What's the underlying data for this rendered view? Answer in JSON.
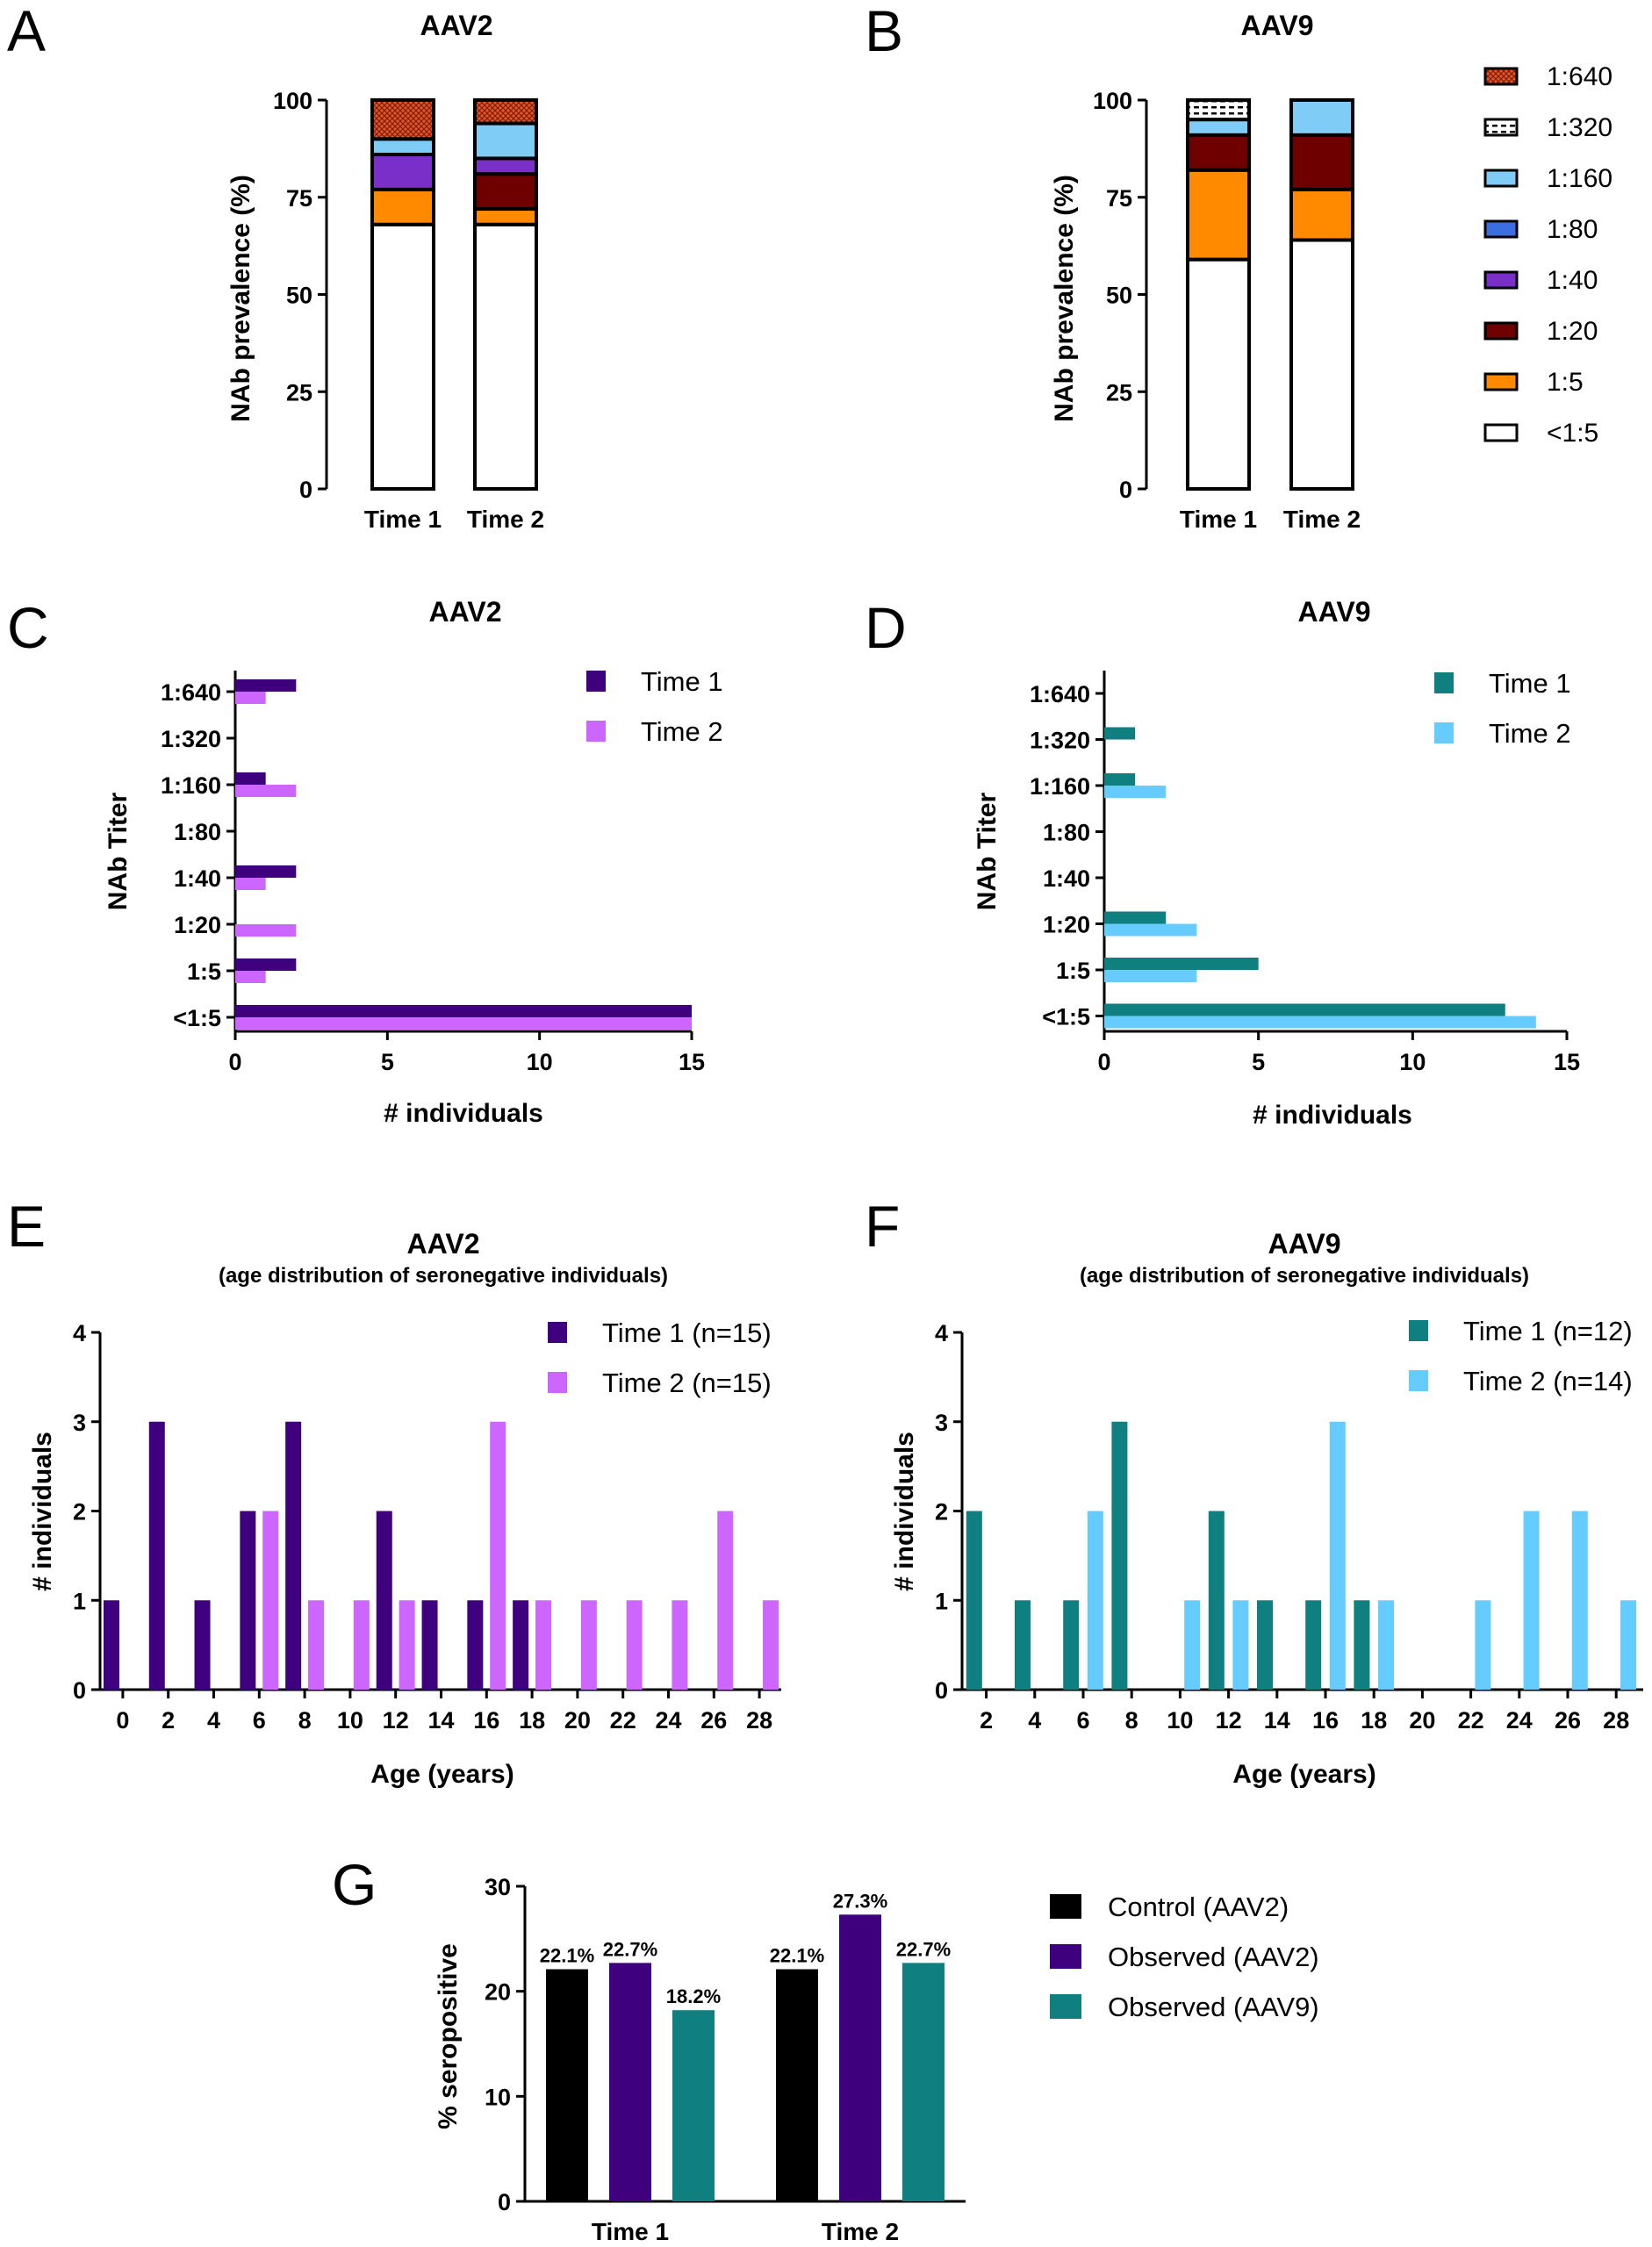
{
  "colors": {
    "t640": "#e8542b",
    "t320": "#ffffff",
    "t160": "#7fcdf7",
    "t80": "#3b6fe0",
    "t40": "#7a2fc8",
    "t20": "#6e0000",
    "t5": "#ff8a00",
    "neg": "#ffffff",
    "aav2_time1": "#3f007d",
    "aav2_time2": "#cc66ff",
    "aav9_time1": "#0f7f7f",
    "aav9_time2": "#66ccff",
    "control": "#000000",
    "obs_aav2": "#3f007d",
    "obs_aav9": "#0f7f7f"
  },
  "panels": {
    "A": {
      "letter": "A",
      "title": "AAV2",
      "ylabel": "NAb prevalence (%)"
    },
    "B": {
      "letter": "B",
      "title": "AAV9",
      "ylabel": "NAb prevalence (%)"
    },
    "C": {
      "letter": "C",
      "title": "AAV2",
      "xlabel": "# individuals",
      "ylabel": "NAb Titer"
    },
    "D": {
      "letter": "D",
      "title": "AAV9",
      "xlabel": "# individuals",
      "ylabel": "NAb Titer"
    },
    "E": {
      "letter": "E",
      "title": "AAV2",
      "subtitle": "(age distribution of seronegative individuals)",
      "xlabel": "Age (years)",
      "ylabel": "# individuals"
    },
    "F": {
      "letter": "F",
      "title": "AAV9",
      "subtitle": "(age distribution of seronegative individuals)",
      "xlabel": "Age (years)",
      "ylabel": "# individuals"
    },
    "G": {
      "letter": "G",
      "ylabel": "% seropositive"
    }
  },
  "chart_data": [
    {
      "id": "A",
      "type": "bar",
      "stacked": true,
      "categories": [
        "Time 1",
        "Time 2"
      ],
      "series": [
        {
          "name": "<1:5",
          "key": "neg",
          "values": [
            68,
            68
          ]
        },
        {
          "name": "1:5",
          "key": "t5",
          "values": [
            9,
            4
          ]
        },
        {
          "name": "1:20",
          "key": "t20",
          "values": [
            0,
            9
          ]
        },
        {
          "name": "1:40",
          "key": "t40",
          "values": [
            9,
            4
          ]
        },
        {
          "name": "1:80",
          "key": "t80",
          "values": [
            0,
            0
          ]
        },
        {
          "name": "1:160",
          "key": "t160",
          "values": [
            4,
            9
          ]
        },
        {
          "name": "1:320",
          "key": "t320",
          "values": [
            0,
            0
          ]
        },
        {
          "name": "1:640",
          "key": "t640",
          "values": [
            10,
            6
          ]
        }
      ],
      "yticks": [
        "0",
        "25",
        "50",
        "75",
        "100"
      ],
      "ylim": [
        0,
        100
      ]
    },
    {
      "id": "B",
      "type": "bar",
      "stacked": true,
      "categories": [
        "Time 1",
        "Time 2"
      ],
      "series": [
        {
          "name": "<1:5",
          "key": "neg",
          "values": [
            59,
            64
          ]
        },
        {
          "name": "1:5",
          "key": "t5",
          "values": [
            23,
            13
          ]
        },
        {
          "name": "1:20",
          "key": "t20",
          "values": [
            9,
            14
          ]
        },
        {
          "name": "1:40",
          "key": "t40",
          "values": [
            0,
            0
          ]
        },
        {
          "name": "1:80",
          "key": "t80",
          "values": [
            0,
            0
          ]
        },
        {
          "name": "1:160",
          "key": "t160",
          "values": [
            4,
            9
          ]
        },
        {
          "name": "1:320",
          "key": "t320",
          "values": [
            5,
            0
          ]
        },
        {
          "name": "1:640",
          "key": "t640",
          "values": [
            0,
            0
          ]
        }
      ],
      "yticks": [
        "0",
        "25",
        "50",
        "75",
        "100"
      ],
      "ylim": [
        0,
        100
      ],
      "legend_order": [
        "t640",
        "t320",
        "t160",
        "t80",
        "t40",
        "t20",
        "t5",
        "neg"
      ]
    },
    {
      "id": "C",
      "type": "bar",
      "orientation": "horizontal",
      "categories": [
        "1:640",
        "1:320",
        "1:160",
        "1:80",
        "1:40",
        "1:20",
        "1:5",
        "<1:5"
      ],
      "series": [
        {
          "name": "Time 1",
          "key": "aav2_time1",
          "values": [
            2,
            0,
            1,
            0,
            2,
            0,
            2,
            15
          ]
        },
        {
          "name": "Time 2",
          "key": "aav2_time2",
          "values": [
            1,
            0,
            2,
            0,
            1,
            2,
            1,
            15
          ]
        }
      ],
      "xticks": [
        "0",
        "5",
        "10",
        "15"
      ],
      "xlim": [
        0,
        15
      ]
    },
    {
      "id": "D",
      "type": "bar",
      "orientation": "horizontal",
      "categories": [
        "1:640",
        "1:320",
        "1:160",
        "1:80",
        "1:40",
        "1:20",
        "1:5",
        "<1:5"
      ],
      "series": [
        {
          "name": "Time 1",
          "key": "aav9_time1",
          "values": [
            0,
            1,
            1,
            0,
            0,
            2,
            5,
            13
          ]
        },
        {
          "name": "Time 2",
          "key": "aav9_time2",
          "values": [
            0,
            0,
            2,
            0,
            0,
            3,
            3,
            14
          ]
        }
      ],
      "xticks": [
        "0",
        "5",
        "10",
        "15"
      ],
      "xlim": [
        0,
        15
      ]
    },
    {
      "id": "E",
      "type": "bar",
      "xlim": [
        -1,
        29
      ],
      "ylim": [
        0,
        4
      ],
      "xticks": [
        "0",
        "2",
        "4",
        "6",
        "8",
        "10",
        "12",
        "14",
        "16",
        "18",
        "20",
        "22",
        "24",
        "26",
        "28"
      ],
      "yticks": [
        "0",
        "1",
        "2",
        "3",
        "4"
      ],
      "series": [
        {
          "name": "Time 1 (n=15)",
          "key": "aav2_time1",
          "points": [
            [
              -0.5,
              1
            ],
            [
              1.5,
              3
            ],
            [
              3.5,
              1
            ],
            [
              5.5,
              2
            ],
            [
              7.5,
              3
            ],
            [
              11.5,
              2
            ],
            [
              13.5,
              1
            ],
            [
              15.5,
              1
            ],
            [
              17.5,
              1
            ]
          ]
        },
        {
          "name": "Time 2 (n=15)",
          "key": "aav2_time2",
          "points": [
            [
              6.5,
              2
            ],
            [
              8.5,
              1
            ],
            [
              10.5,
              1
            ],
            [
              12.5,
              1
            ],
            [
              16.5,
              3
            ],
            [
              18.5,
              1
            ],
            [
              20.5,
              1
            ],
            [
              22.5,
              1
            ],
            [
              24.5,
              1
            ],
            [
              26.5,
              2
            ],
            [
              28.5,
              1
            ]
          ]
        }
      ]
    },
    {
      "id": "F",
      "type": "bar",
      "xlim": [
        1,
        29
      ],
      "ylim": [
        0,
        4
      ],
      "xticks": [
        "2",
        "4",
        "6",
        "8",
        "10",
        "12",
        "14",
        "16",
        "18",
        "20",
        "22",
        "24",
        "26",
        "28"
      ],
      "yticks": [
        "0",
        "1",
        "2",
        "3",
        "4"
      ],
      "series": [
        {
          "name": "Time 1 (n=12)",
          "key": "aav9_time1",
          "points": [
            [
              1.5,
              2
            ],
            [
              3.5,
              1
            ],
            [
              5.5,
              1
            ],
            [
              7.5,
              3
            ],
            [
              11.5,
              2
            ],
            [
              13.5,
              1
            ],
            [
              15.5,
              1
            ],
            [
              17.5,
              1
            ]
          ]
        },
        {
          "name": "Time 2 (n=14)",
          "key": "aav9_time2",
          "points": [
            [
              6.5,
              2
            ],
            [
              10.5,
              1
            ],
            [
              12.5,
              1
            ],
            [
              16.5,
              3
            ],
            [
              18.5,
              1
            ],
            [
              22.5,
              1
            ],
            [
              24.5,
              2
            ],
            [
              26.5,
              2
            ],
            [
              28.5,
              1
            ]
          ]
        }
      ]
    },
    {
      "id": "G",
      "type": "bar",
      "categories": [
        "Time 1",
        "Time 2"
      ],
      "series": [
        {
          "name": "Control (AAV2)",
          "key": "control",
          "values": [
            22.1,
            22.1
          ],
          "labels": [
            "22.1%",
            "22.1%"
          ]
        },
        {
          "name": "Observed (AAV2)",
          "key": "obs_aav2",
          "values": [
            22.7,
            27.3
          ],
          "labels": [
            "22.7%",
            "27.3%"
          ]
        },
        {
          "name": "Observed (AAV9)",
          "key": "obs_aav9",
          "values": [
            18.2,
            22.7
          ],
          "labels": [
            "18.2%",
            "22.7%"
          ]
        }
      ],
      "yticks": [
        "0",
        "10",
        "20",
        "30"
      ],
      "ylim": [
        0,
        30
      ]
    }
  ]
}
